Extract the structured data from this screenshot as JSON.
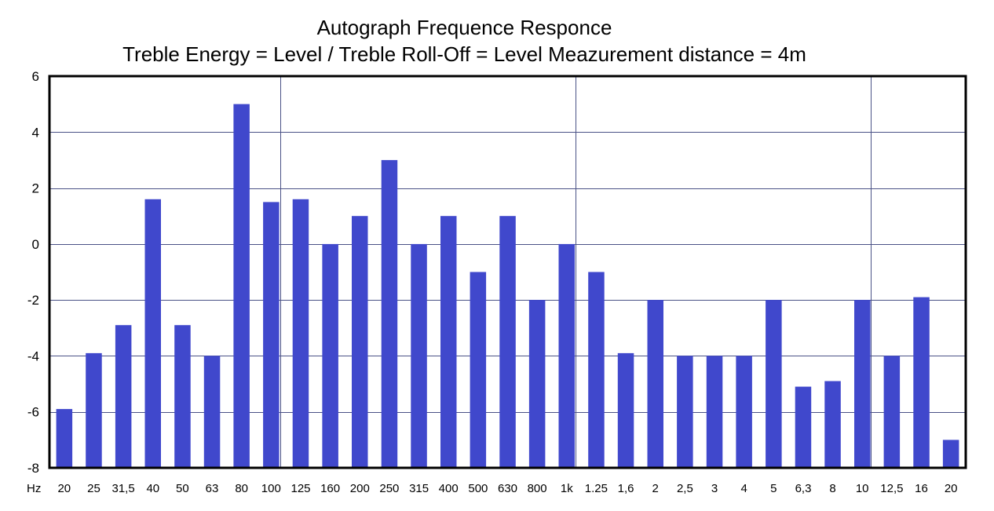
{
  "chart_data": {
    "type": "bar",
    "title": "Autograph  Frequence Responce",
    "subtitle": "Treble  Energy = Level /  Treble Roll-Off = Level   Meazurement  distance = 4m",
    "x_unit_label": "Hz",
    "categories": [
      "20",
      "25",
      "31,5",
      "40",
      "50",
      "63",
      "80",
      "100",
      "125",
      "160",
      "200",
      "250",
      "315",
      "400",
      "500",
      "630",
      "800",
      "1k",
      "1.25",
      "1,6",
      "2",
      "2,5",
      "3",
      "4",
      "5",
      "6,3",
      "8",
      "10",
      "12,5",
      "16",
      "20"
    ],
    "values": [
      -5.9,
      -3.9,
      -2.9,
      1.6,
      -2.9,
      -4.0,
      5.0,
      1.5,
      1.6,
      0.0,
      1.0,
      3.0,
      0.0,
      1.0,
      -1.0,
      1.0,
      -2.0,
      0.0,
      -1.0,
      -3.9,
      -2.0,
      -4.0,
      -4.0,
      -4.0,
      -2.0,
      -5.1,
      -4.9,
      -2.0,
      -4.0,
      -1.9,
      -7.0
    ],
    "ylim": [
      -8,
      6
    ],
    "yticks": [
      "6",
      "4",
      "2",
      "0",
      "-2",
      "-4",
      "-6",
      "-8"
    ],
    "ytick_values": [
      6,
      4,
      2,
      0,
      -2,
      -4,
      -6,
      -8
    ],
    "grid": "horizontal lines plus vertical decade lines",
    "vertical_grid_after": [
      "100",
      "1k",
      "10"
    ],
    "colors": {
      "bar": "#4048cc",
      "grid": "#4a5286",
      "axis": "#000000"
    }
  }
}
